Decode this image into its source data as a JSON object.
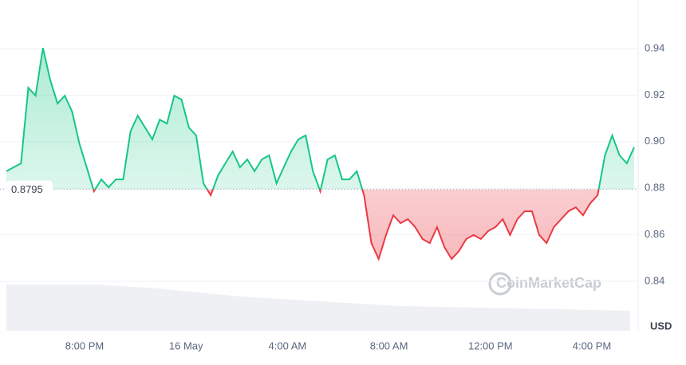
{
  "chart_data": {
    "type": "line",
    "unit": "USD",
    "watermark": "CoinMarketCap",
    "baseline": 0.8795,
    "baseline_label": "0.8795",
    "up_color": "#16c784",
    "down_color": "#ea3943",
    "xtick_labels": [
      "8:00 PM",
      "16 May",
      "4:00 AM",
      "8:00 AM",
      "12:00 PM",
      "4:00 PM"
    ],
    "ylim": [
      0.82,
      0.96
    ],
    "yticks": [
      {
        "value": 0.84,
        "label": "0.84"
      },
      {
        "value": 0.86,
        "label": "0.86"
      },
      {
        "value": 0.88,
        "label": "0.88"
      },
      {
        "value": 0.9,
        "label": "0.90"
      },
      {
        "value": 0.92,
        "label": "0.92"
      },
      {
        "value": 0.94,
        "label": "0.94"
      }
    ],
    "grid": true,
    "values": [
      0.8873,
      0.889,
      0.8907,
      0.9232,
      0.9198,
      0.9403,
      0.9266,
      0.9164,
      0.9198,
      0.9129,
      0.8992,
      0.889,
      0.8787,
      0.8838,
      0.8804,
      0.8838,
      0.8838,
      0.9044,
      0.9112,
      0.9061,
      0.901,
      0.9095,
      0.9078,
      0.9198,
      0.9181,
      0.9061,
      0.9027,
      0.8821,
      0.877,
      0.8855,
      0.8907,
      0.8958,
      0.889,
      0.8924,
      0.8873,
      0.8924,
      0.8941,
      0.8821,
      0.889,
      0.8958,
      0.901,
      0.9027,
      0.8873,
      0.8787,
      0.8924,
      0.8941,
      0.8838,
      0.8838,
      0.8873,
      0.877,
      0.8564,
      0.8496,
      0.8599,
      0.8684,
      0.865,
      0.8667,
      0.8633,
      0.8582,
      0.8564,
      0.8633,
      0.8547,
      0.8496,
      0.853,
      0.8582,
      0.8599,
      0.8582,
      0.8616,
      0.8633,
      0.8667,
      0.8599,
      0.8667,
      0.8701,
      0.8701,
      0.8599,
      0.8564,
      0.8633,
      0.8667,
      0.8701,
      0.8718,
      0.8684,
      0.8736,
      0.877,
      0.8941,
      0.9027,
      0.8941,
      0.8907,
      0.8976
    ]
  }
}
